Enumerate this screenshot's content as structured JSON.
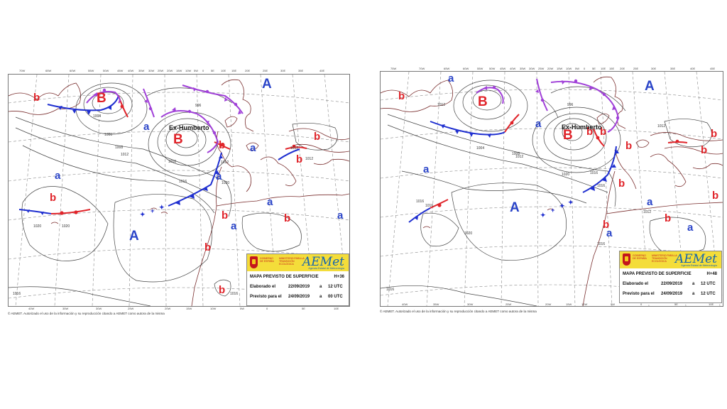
{
  "colors": {
    "low": "#e0242a",
    "high": "#2a44c8",
    "cold_front": "#1f2fd0",
    "warm_front": "#e0242a",
    "occluded_front": "#a040d8",
    "isobar": "#444444",
    "coast": "#7a2e2e"
  },
  "maps": [
    {
      "forecast": {
        "title": "MAPA PREVISTO DE SUPERFICIE",
        "lead": "H+36",
        "elaborated_label": "Elaborado el",
        "elaborated_date": "22/09/2019",
        "elaborated_at": "a",
        "elaborated_time": "12 UTC",
        "valid_label": "Previsto para el",
        "valid_date": "24/09/2019",
        "valid_at": "a",
        "valid_time": "00 UTC"
      },
      "logos": {
        "government": "GOBIERNO DE ESPAÑA",
        "ministry": "MINISTERIO PARA LA TRANSICIÓN ECOLÓGICA",
        "agency": "AEMet",
        "agency_sub": "Agencia Estatal de Meteorología"
      },
      "storm_name": "Ex-Humberto",
      "pressure_centers": [
        {
          "label": "B"
        },
        {
          "label": "B"
        },
        {
          "label": "b"
        },
        {
          "label": "b"
        },
        {
          "label": "b"
        },
        {
          "label": "b"
        },
        {
          "label": "b"
        },
        {
          "label": "b"
        },
        {
          "label": "b"
        },
        {
          "label": "b"
        },
        {
          "label": "b"
        },
        {
          "label": "A"
        },
        {
          "label": "A"
        },
        {
          "label": "a"
        },
        {
          "label": "a"
        },
        {
          "label": "a"
        },
        {
          "label": "a"
        },
        {
          "label": "a"
        },
        {
          "label": "a"
        },
        {
          "label": "a"
        }
      ],
      "isobar_values": [
        "996",
        "1004",
        "1000",
        "1008",
        "1012",
        "1012",
        "1016",
        "1016",
        "1020",
        "1020",
        "1012",
        "1012",
        "1016",
        "1020",
        "1016"
      ],
      "top_ticks": [
        "70W",
        "65W",
        "60W",
        "55W",
        "50W",
        "45W",
        "40W",
        "35W",
        "30W",
        "25W",
        "20W",
        "15W",
        "10W",
        "5W",
        "0",
        "5E",
        "10E",
        "15E",
        "20E",
        "25E",
        "30E",
        "35E",
        "40E"
      ],
      "bottom_ticks": [
        "40W",
        "35W",
        "30W",
        "25W",
        "20W",
        "15W",
        "10W",
        "5W",
        "0",
        "5E",
        "10E"
      ],
      "copyright": "© AEMET. Autorizado el uso de la información y su reproducción citando a AEMET como autora de la misma"
    },
    {
      "forecast": {
        "title": "MAPA PREVISTO DE SUPERFICIE",
        "lead": "H+48",
        "elaborated_label": "Elaborado el",
        "elaborated_date": "22/09/2019",
        "elaborated_at": "a",
        "elaborated_time": "12 UTC",
        "valid_label": "Previsto para el",
        "valid_date": "24/09/2019",
        "valid_at": "a",
        "valid_time": "12 UTC"
      },
      "logos": {
        "government": "GOBIERNO DE ESPAÑA",
        "ministry": "MINISTERIO PARA LA TRANSICIÓN ECOLÓGICA",
        "agency": "AEMet",
        "agency_sub": "Agencia Estatal de Meteorología"
      },
      "storm_name": "Ex-Humberto",
      "pressure_centers": [
        {
          "label": "B"
        },
        {
          "label": "B"
        },
        {
          "label": "b"
        },
        {
          "label": "b"
        },
        {
          "label": "b"
        },
        {
          "label": "b"
        },
        {
          "label": "b"
        },
        {
          "label": "b"
        },
        {
          "label": "b"
        },
        {
          "label": "b"
        },
        {
          "label": "b"
        },
        {
          "label": "b"
        },
        {
          "label": "A"
        },
        {
          "label": "A"
        },
        {
          "label": "a"
        },
        {
          "label": "a"
        },
        {
          "label": "a"
        },
        {
          "label": "a"
        },
        {
          "label": "a"
        },
        {
          "label": "a"
        }
      ],
      "isobar_values": [
        "996",
        "1012",
        "1004",
        "1008",
        "1012",
        "1016",
        "1020",
        "1012",
        "1016",
        "1016",
        "1020",
        "1016",
        "1012",
        "1016",
        "1016"
      ],
      "top_ticks": [
        "75W",
        "70W",
        "65W",
        "60W",
        "55W",
        "50W",
        "45W",
        "40W",
        "35W",
        "30W",
        "25W",
        "20W",
        "15W",
        "10W",
        "5W",
        "0",
        "5E",
        "10E",
        "15E",
        "20E",
        "25E",
        "30E",
        "35E",
        "40E",
        "45E"
      ],
      "bottom_ticks": [
        "40W",
        "35W",
        "30W",
        "25W",
        "20W",
        "15W",
        "10W",
        "5W",
        "0",
        "5E",
        "10E"
      ],
      "copyright": "© AEMET. Autorizado el uso de la información y su reproducción citando a AEMET como autora de la misma"
    }
  ]
}
